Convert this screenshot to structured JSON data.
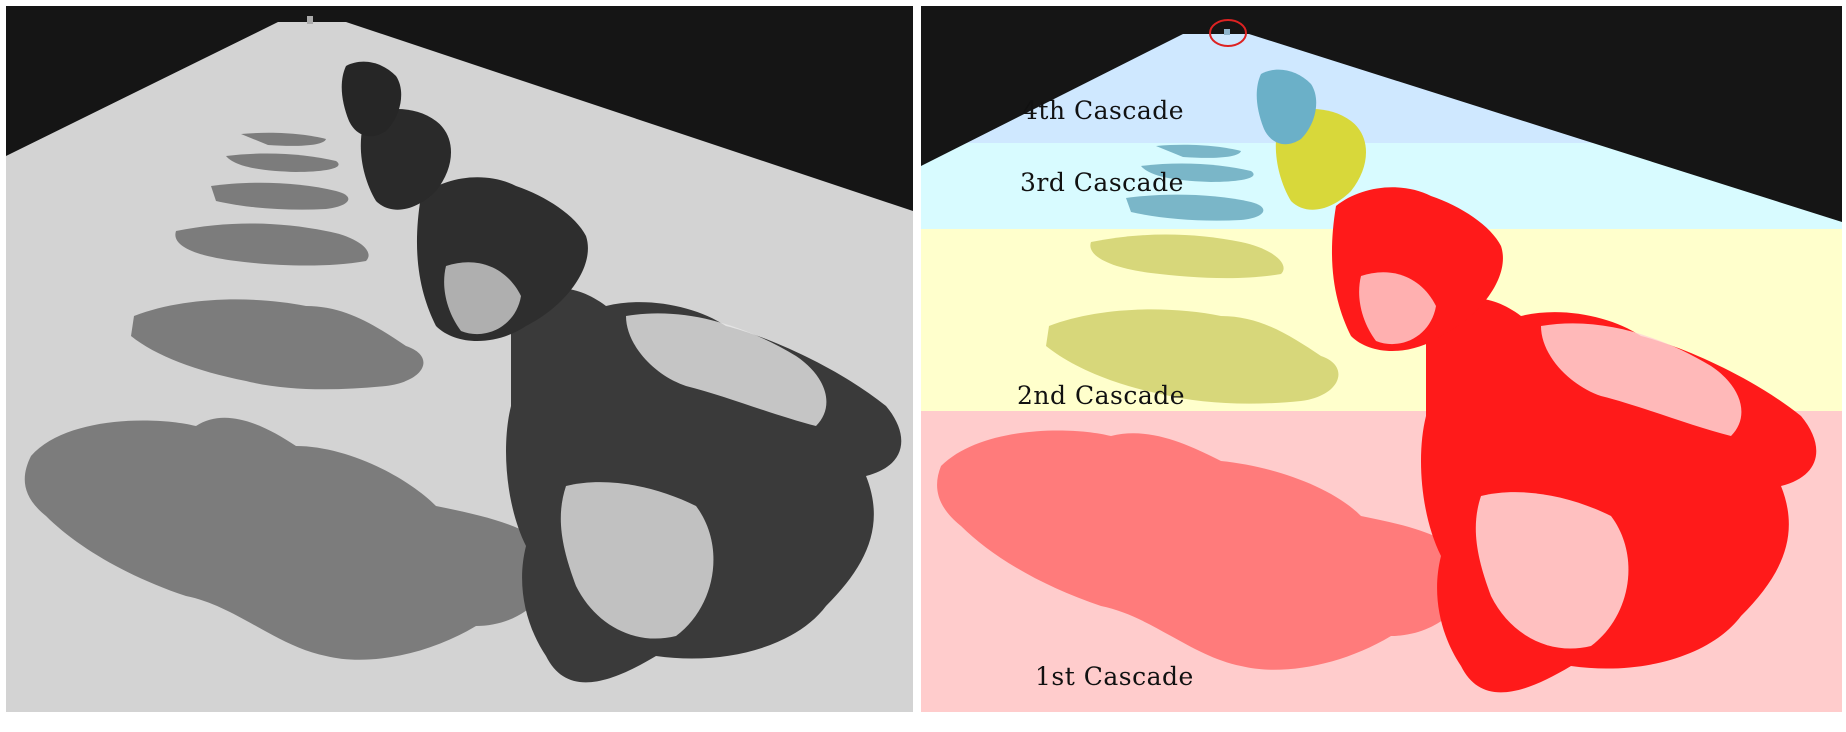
{
  "comparison": {
    "left_panel": {
      "description_icon": "standard-shadow-render",
      "colors": {
        "sky": "#151515",
        "ground": "#d3d3d3",
        "shadow": "#7c7c7c",
        "model": "#2a2a2a"
      }
    },
    "right_panel": {
      "description_icon": "cascade-visualization-render",
      "cascades": [
        {
          "label": "4th Cascade",
          "color": "#cfe8ff"
        },
        {
          "label": "3rd Cascade",
          "color": "#d8fbff"
        },
        {
          "label": "2nd Cascade",
          "color": "#ffffcc"
        },
        {
          "label": "1st Cascade",
          "color": "#ffcccc"
        }
      ],
      "colors": {
        "sky": "#151515",
        "highlight_circle": "#dd2222",
        "model_near": "#ff1a1a",
        "model_mid": "#d8d83a",
        "model_far": "#6bb0c8"
      }
    }
  }
}
